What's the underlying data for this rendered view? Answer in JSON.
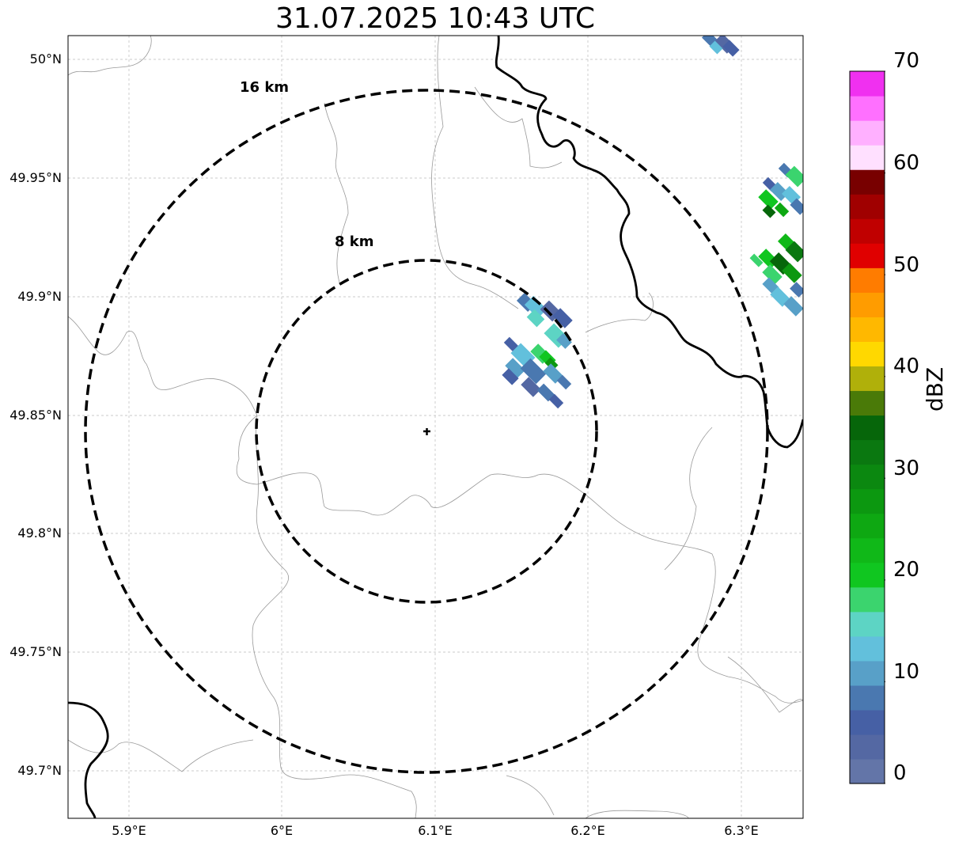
{
  "title": "31.07.2025 10:43 UTC",
  "map": {
    "lat_labels": [
      "50°N",
      "49.95°N",
      "49.9°N",
      "49.85°N",
      "49.8°N",
      "49.75°N",
      "49.7°N"
    ],
    "lon_labels": [
      "5.9°E",
      "6°E",
      "6.1°E",
      "6.2°E",
      "6.3°E"
    ],
    "rings": [
      {
        "label": "16 km",
        "radius_km": 16
      },
      {
        "label": "8 km",
        "radius_km": 8
      }
    ],
    "radar_site_icon": "plus-marker-icon",
    "colors": {
      "border": "#000000",
      "grid": "#bbbbbb",
      "admin": "#999999"
    }
  },
  "colorbar": {
    "label": "dBZ",
    "ticks": [
      "0",
      "10",
      "20",
      "30",
      "40",
      "50",
      "60",
      "70"
    ],
    "colors": [
      "#6375a8",
      "#5468a3",
      "#4660a5",
      "#4a78b0",
      "#58a0c8",
      "#62c0dc",
      "#5dd4c4",
      "#3bd46e",
      "#10c620",
      "#10b818",
      "#0ea812",
      "#0c9810",
      "#0b8810",
      "#0a7810",
      "#06660a",
      "#4a7a08",
      "#b0b00a",
      "#ffd800",
      "#ffb800",
      "#ff9c00",
      "#ff7c00",
      "#e00000",
      "#c00000",
      "#a00000",
      "#780000",
      "#ffe0ff",
      "#ffb0ff",
      "#ff70ff",
      "#f030f0"
    ]
  }
}
